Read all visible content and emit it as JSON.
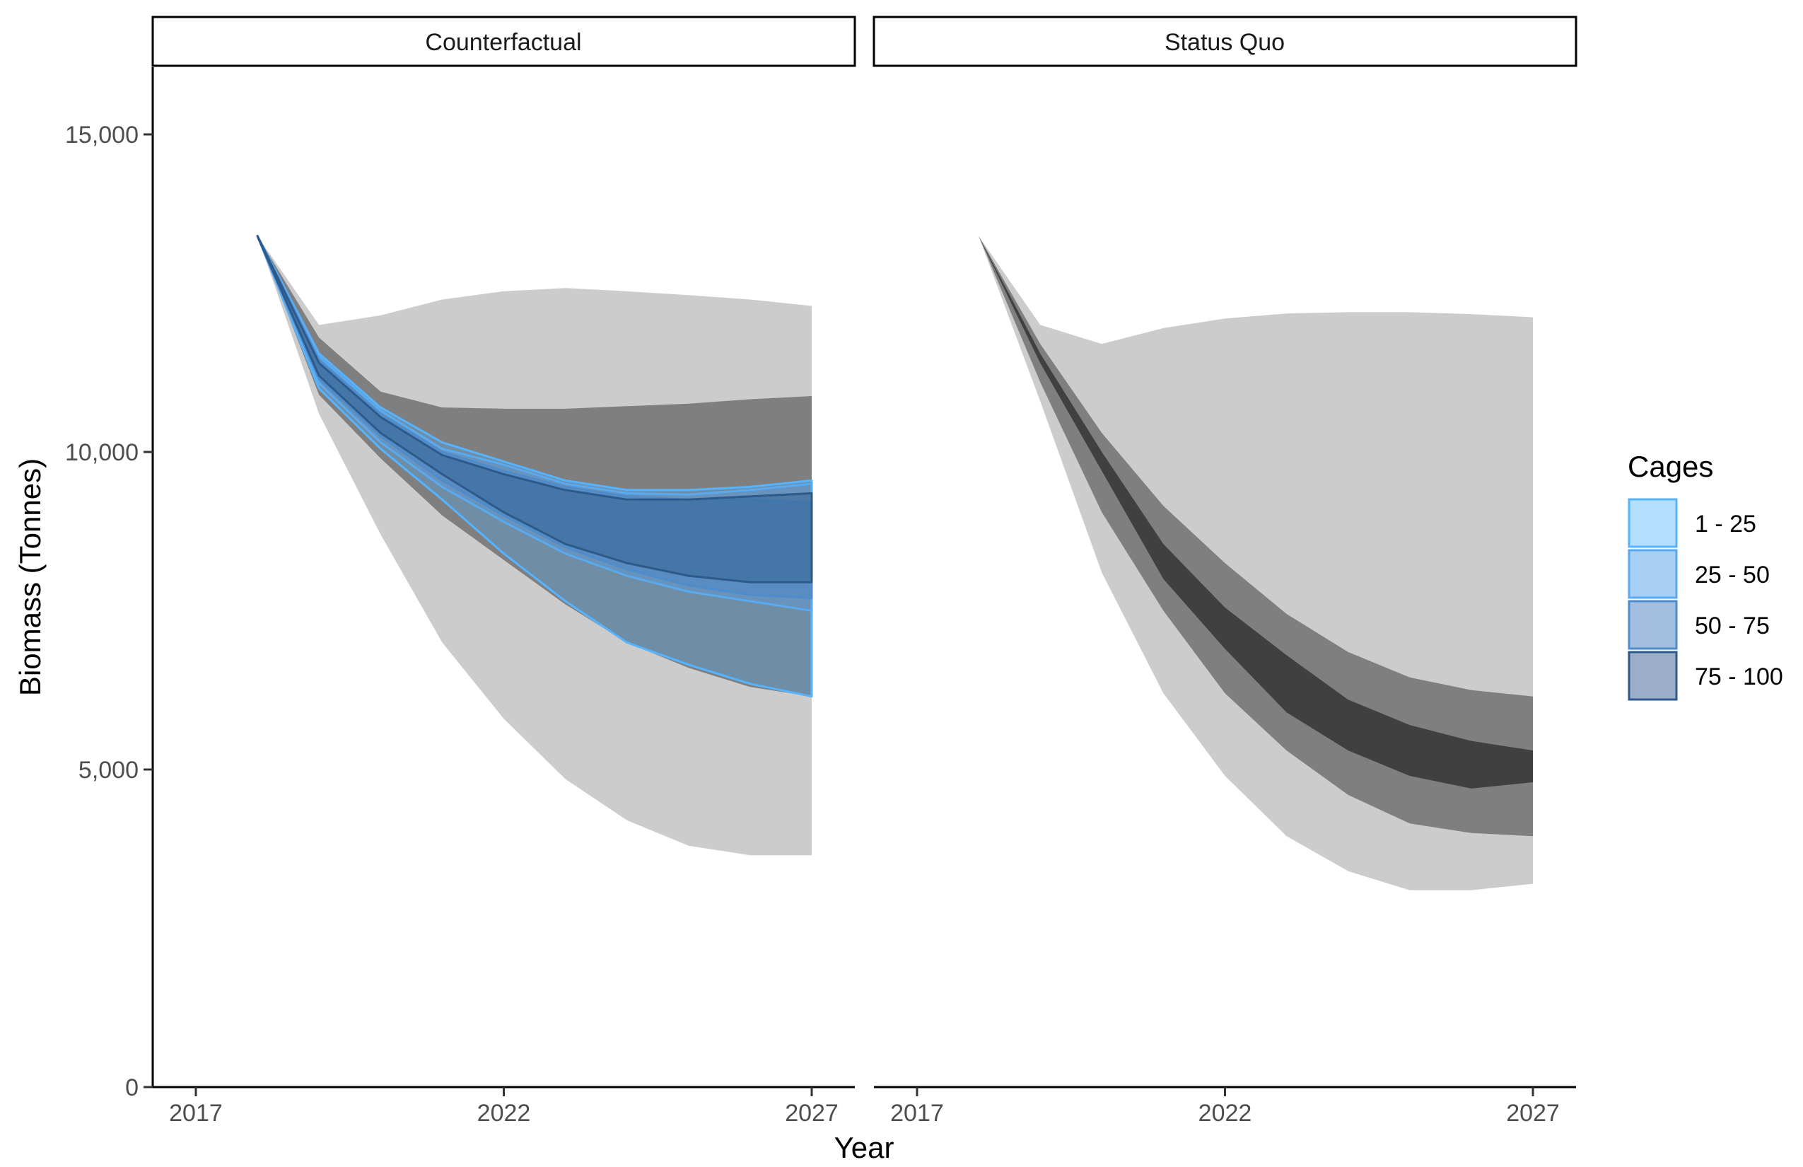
{
  "chart_data": {
    "type": "area",
    "xlabel": "Year",
    "ylabel": "Biomass (Tonnes)",
    "xlim": [
      2016.3,
      2027.7
    ],
    "ylim": [
      0,
      15000
    ],
    "x_ticks": [
      2017,
      2022,
      2027
    ],
    "x_tick_labels": [
      "2017",
      "2022",
      "2027"
    ],
    "y_ticks": [
      0,
      5000,
      10000,
      15000
    ],
    "y_tick_labels": [
      "0",
      "5,000",
      "10,000",
      "15,000"
    ],
    "grid": false,
    "legend": {
      "title": "Cages",
      "position": "right",
      "entries": [
        {
          "label": "1 - 25",
          "fill": "#b3e0ff",
          "stroke": "#56b4ff"
        },
        {
          "label": "25 - 50",
          "fill": "#a8d0f5",
          "stroke": "#5aaaf0"
        },
        {
          "label": "50 - 75",
          "fill": "#a3bfdf",
          "stroke": "#4f8ccc"
        },
        {
          "label": "75 - 100",
          "fill": "#9aaec8",
          "stroke": "#2d5a8a"
        }
      ]
    },
    "x": [
      2018,
      2019,
      2020,
      2021,
      2022,
      2023,
      2024,
      2025,
      2026,
      2027
    ],
    "panels": [
      {
        "title": "Counterfactual",
        "gray_bands": [
          {
            "name": "outer",
            "color": "#cccccc",
            "lower": [
              13400,
              10600,
              8700,
              7000,
              5800,
              4850,
              4200,
              3800,
              3650,
              3650
            ],
            "upper": [
              13400,
              12000,
              12150,
              12400,
              12530,
              12580,
              12530,
              12470,
              12400,
              12300
            ]
          },
          {
            "name": "inner",
            "color": "#7f7f7f",
            "lower": [
              13400,
              10900,
              9900,
              9000,
              8300,
              7600,
              7000,
              6600,
              6300,
              6150
            ],
            "upper": [
              13400,
              11800,
              10950,
              10700,
              10680,
              10680,
              10720,
              10760,
              10830,
              10880
            ]
          }
        ],
        "cage_bands": [
          {
            "name": "1 - 25",
            "lower": [
              13400,
              11000,
              10050,
              9250,
              8400,
              7650,
              7000,
              6650,
              6350,
              6150
            ],
            "upper": [
              13400,
              11550,
              10700,
              10150,
              9850,
              9550,
              9400,
              9400,
              9450,
              9550
            ]
          },
          {
            "name": "25 - 50",
            "lower": [
              13400,
              11080,
              10150,
              9450,
              8900,
              8400,
              8050,
              7800,
              7650,
              7500
            ],
            "upper": [
              13400,
              11500,
              10650,
              10050,
              9800,
              9500,
              9350,
              9330,
              9400,
              9500
            ]
          },
          {
            "name": "50 - 75",
            "lower": [
              13400,
              11150,
              10250,
              9550,
              9000,
              8500,
              8150,
              7900,
              7750,
              7700
            ],
            "upper": [
              13400,
              11450,
              10600,
              10000,
              9700,
              9450,
              9300,
              9250,
              9250,
              9200
            ]
          },
          {
            "name": "75 - 100",
            "lower": [
              13400,
              11200,
              10300,
              9650,
              9050,
              8550,
              8250,
              8050,
              7950,
              7950
            ],
            "upper": [
              13400,
              11400,
              10550,
              9950,
              9650,
              9400,
              9250,
              9250,
              9300,
              9350
            ]
          }
        ]
      },
      {
        "title": "Status Quo",
        "gray_bands": [
          {
            "name": "outer",
            "color": "#cccccc",
            "lower": [
              13400,
              10800,
              8100,
              6200,
              4900,
              3950,
              3400,
              3100,
              3100,
              3200
            ],
            "upper": [
              13400,
              12000,
              11700,
              11950,
              12100,
              12180,
              12200,
              12200,
              12170,
              12120
            ]
          },
          {
            "name": "inner",
            "color": "#7f7f7f",
            "lower": [
              13400,
              11100,
              9050,
              7500,
              6200,
              5300,
              4600,
              4150,
              4000,
              3950
            ],
            "upper": [
              13400,
              11700,
              10300,
              9150,
              8250,
              7450,
              6850,
              6450,
              6250,
              6150
            ]
          },
          {
            "name": "median",
            "color": "#404040",
            "lower": [
              13400,
              11400,
              9700,
              8000,
              6900,
              5900,
              5300,
              4900,
              4700,
              4800
            ],
            "upper": [
              13400,
              11550,
              10000,
              8550,
              7550,
              6800,
              6100,
              5700,
              5450,
              5300
            ]
          }
        ]
      }
    ]
  }
}
